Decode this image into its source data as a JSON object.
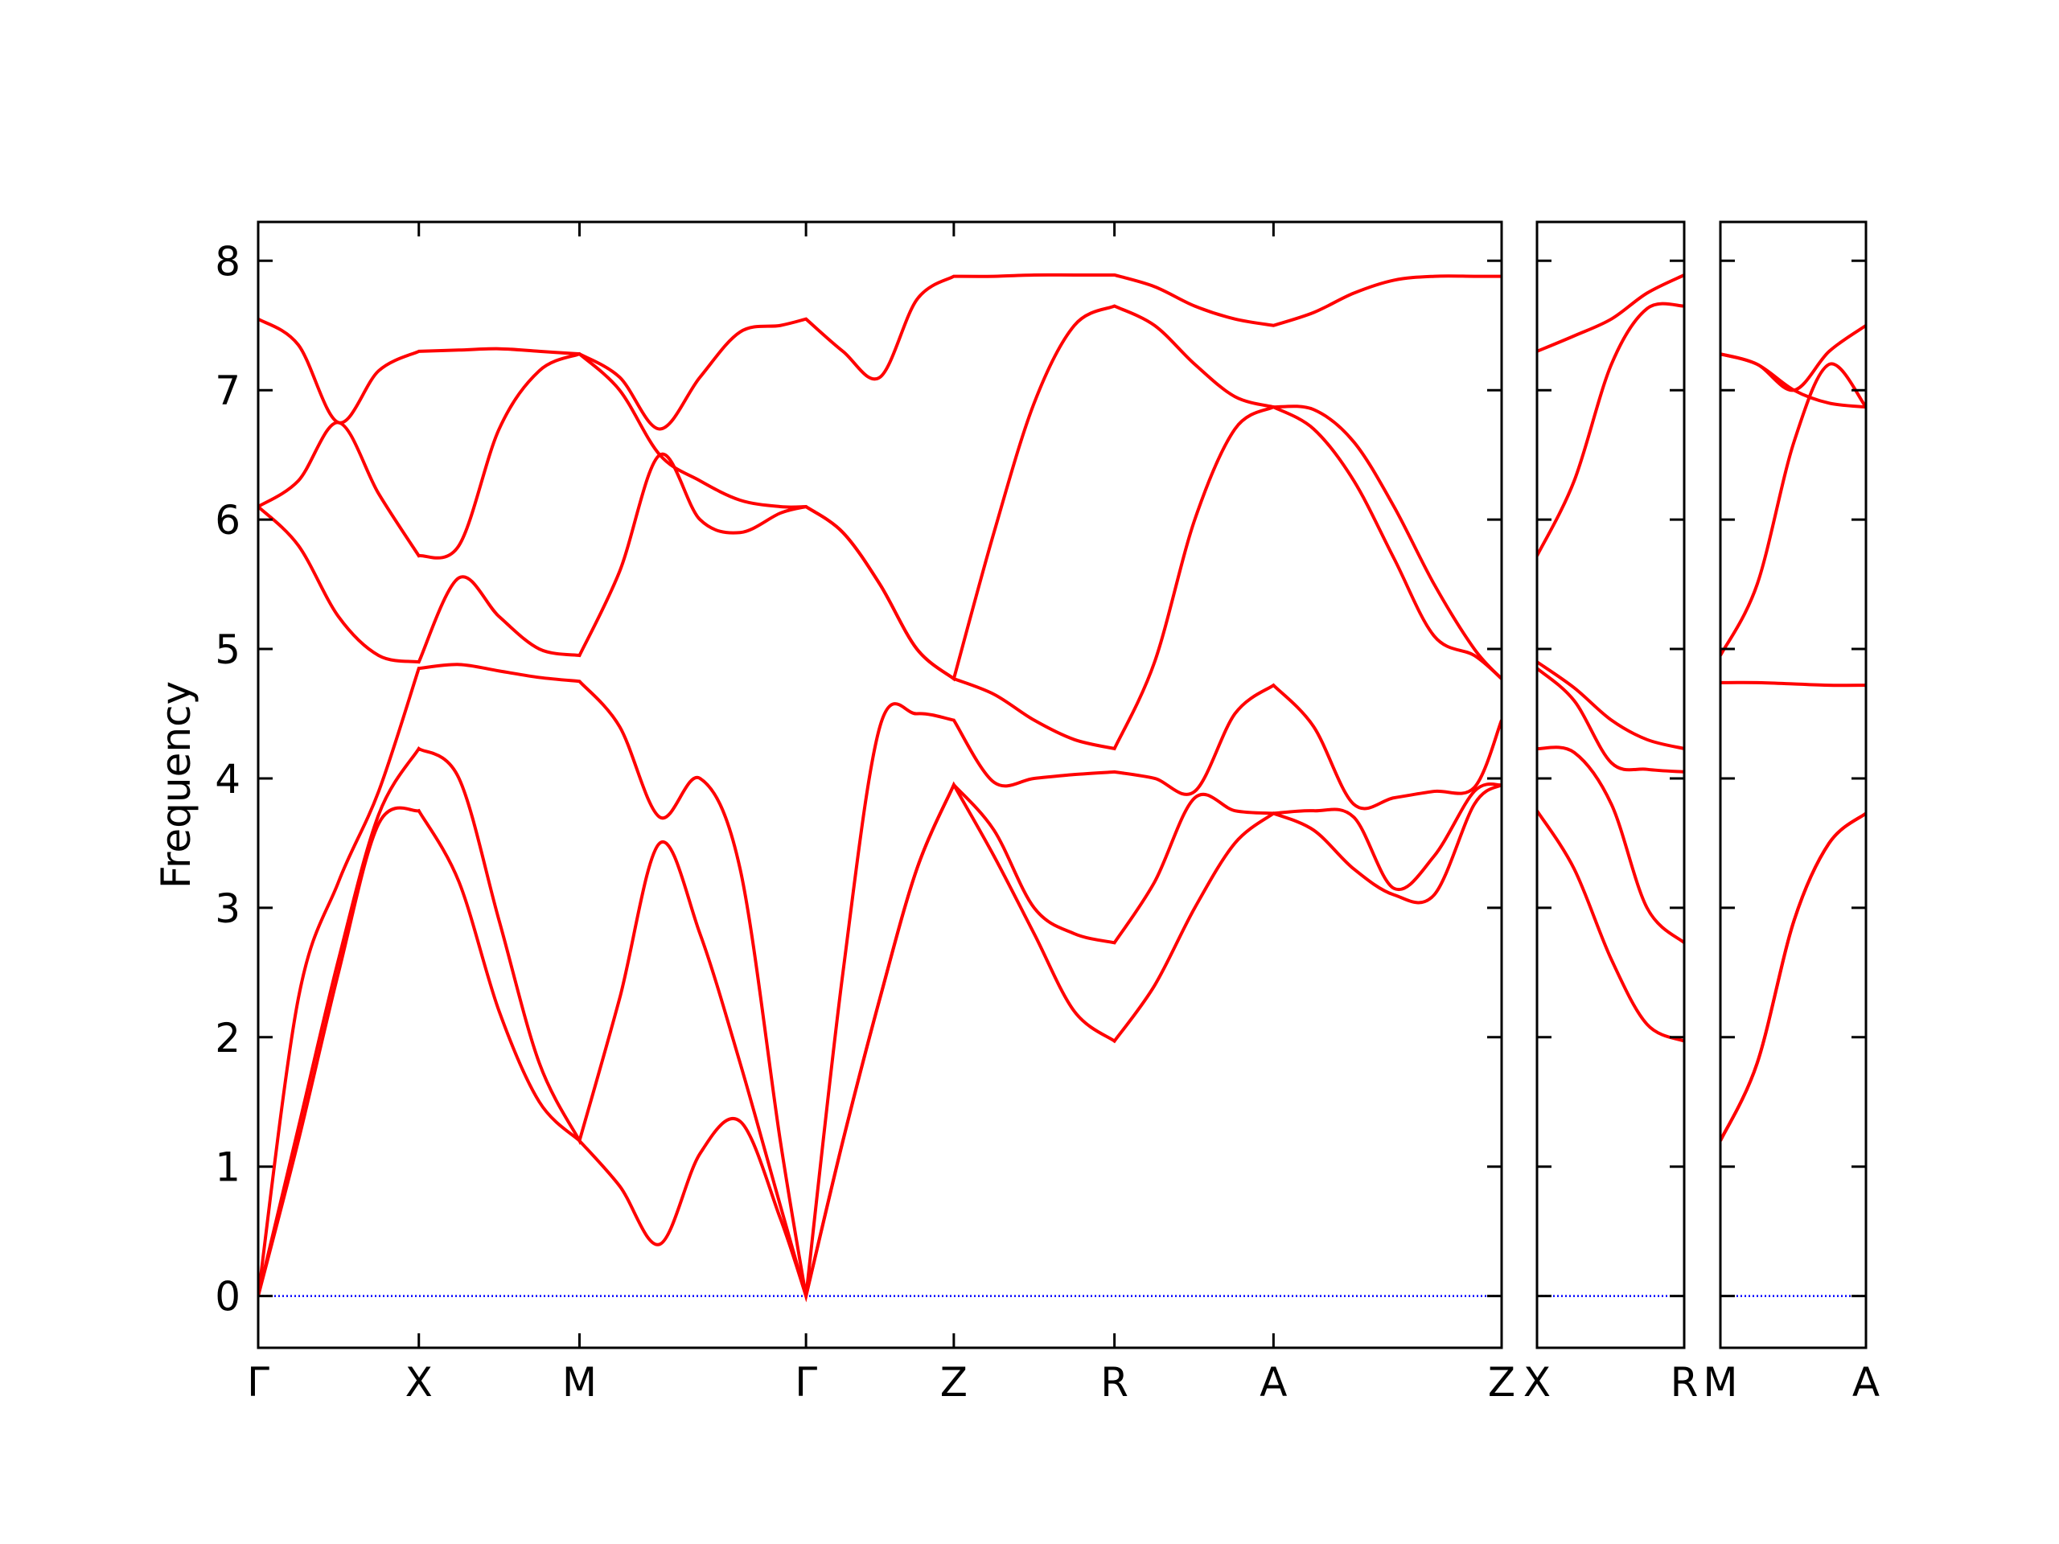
{
  "chart_data": [
    {
      "type": "line",
      "ylabel": "Frequency",
      "ylim": [
        -0.4,
        8.3
      ],
      "yticks": [
        0,
        1,
        2,
        3,
        4,
        5,
        6,
        7,
        8
      ],
      "show_ytick_labels": true,
      "xlim": [
        0,
        7.74
      ],
      "xticks": [
        {
          "value": 0,
          "label": "Γ"
        },
        {
          "value": 1,
          "label": "X"
        },
        {
          "value": 2,
          "label": "M"
        },
        {
          "value": 3.41,
          "label": "Γ"
        },
        {
          "value": 4.33,
          "label": "Z"
        },
        {
          "value": 5.33,
          "label": "R"
        },
        {
          "value": 6.32,
          "label": "A"
        },
        {
          "value": 7.74,
          "label": "Z"
        }
      ],
      "hline": 0,
      "hline_color": "#0000ff",
      "x": [
        0,
        0.25,
        0.5,
        0.75,
        1,
        1.25,
        1.5,
        1.75,
        2,
        2.25,
        2.5,
        2.75,
        3.0,
        3.25,
        3.41,
        3.64,
        3.87,
        4.1,
        4.33,
        4.58,
        4.83,
        5.08,
        5.33,
        5.58,
        5.83,
        6.08,
        6.32,
        6.57,
        6.82,
        7.07,
        7.32,
        7.57,
        7.74
      ],
      "series": [
        {
          "color": "#ff0000",
          "values": [
            0,
            1.2,
            2.5,
            3.65,
            3.75,
            3.2,
            2.2,
            1.5,
            1.2,
            0.85,
            0.4,
            1.1,
            1.35,
            0.6,
            0,
            1.2,
            2.3,
            3.3,
            3.95,
            3.4,
            2.8,
            2.2,
            1.97,
            2.4,
            3.0,
            3.5,
            3.73,
            3.6,
            3.3,
            3.1,
            3.1,
            3.8,
            3.95
          ]
        },
        {
          "color": "#ff0000",
          "values": [
            0,
            1.3,
            2.6,
            3.72,
            4.23,
            4.0,
            2.9,
            1.8,
            1.2,
            2.3,
            3.5,
            2.8,
            1.8,
            0.7,
            0,
            1.2,
            2.3,
            3.3,
            3.95,
            3.6,
            3.0,
            2.8,
            2.73,
            3.2,
            3.85,
            3.75,
            3.73,
            3.75,
            3.7,
            3.15,
            3.4,
            3.9,
            3.95
          ]
        },
        {
          "color": "#ff0000",
          "values": [
            0,
            2.3,
            3.2,
            3.9,
            4.85,
            4.88,
            4.83,
            4.78,
            4.75,
            4.4,
            3.7,
            4.0,
            3.3,
            1.2,
            0,
            2.5,
            4.4,
            4.5,
            4.45,
            3.97,
            4.0,
            4.03,
            4.05,
            4.0,
            3.9,
            4.5,
            4.72,
            4.4,
            3.8,
            3.85,
            3.9,
            3.93,
            4.45
          ]
        },
        {
          "color": "#ff0000",
          "values": [
            6.1,
            5.8,
            5.25,
            4.95,
            4.9,
            5.55,
            5.25,
            5.0,
            4.95,
            5.6,
            6.5,
            6.0,
            5.9,
            6.05,
            6.1,
            5.9,
            5.5,
            5.0,
            4.77,
            4.65,
            4.45,
            4.3,
            4.23,
            4.9,
            6.0,
            6.7,
            6.87,
            6.7,
            6.3,
            5.7,
            5.1,
            4.95,
            4.77
          ]
        },
        {
          "color": "#ff0000",
          "values": [
            6.1,
            6.3,
            6.75,
            6.2,
            5.72,
            5.8,
            6.7,
            7.15,
            7.28,
            7.0,
            6.5,
            6.3,
            6.15,
            6.1,
            6.1,
            5.9,
            5.5,
            5.0,
            4.77,
            5.9,
            6.9,
            7.5,
            7.65,
            7.5,
            7.2,
            6.95,
            6.87,
            6.85,
            6.6,
            6.1,
            5.5,
            5.0,
            4.77
          ]
        },
        {
          "color": "#ff0000",
          "values": [
            7.55,
            7.35,
            6.75,
            7.15,
            7.3,
            7.31,
            7.32,
            7.3,
            7.28,
            7.1,
            6.7,
            7.1,
            7.45,
            7.5,
            7.55,
            7.3,
            7.1,
            7.7,
            7.88,
            7.88,
            7.89,
            7.89,
            7.89,
            7.8,
            7.65,
            7.55,
            7.5,
            7.6,
            7.75,
            7.85,
            7.88,
            7.88,
            7.88
          ]
        }
      ]
    },
    {
      "type": "line",
      "ylim": [
        -0.4,
        8.3
      ],
      "yticks": [
        0,
        1,
        2,
        3,
        4,
        5,
        6,
        7,
        8
      ],
      "show_ytick_labels": false,
      "xlim": [
        0,
        0.91
      ],
      "xticks": [
        {
          "value": 0,
          "label": "X"
        },
        {
          "value": 0.91,
          "label": "R"
        }
      ],
      "hline": 0,
      "hline_color": "#0000ff",
      "x": [
        0,
        0.23,
        0.46,
        0.68,
        0.91
      ],
      "series": [
        {
          "color": "#ff0000",
          "values": [
            3.75,
            3.3,
            2.6,
            2.1,
            1.97
          ]
        },
        {
          "color": "#ff0000",
          "values": [
            4.23,
            4.2,
            3.8,
            3.0,
            2.73
          ]
        },
        {
          "color": "#ff0000",
          "values": [
            4.85,
            4.6,
            4.12,
            4.07,
            4.05
          ]
        },
        {
          "color": "#ff0000",
          "values": [
            4.9,
            4.7,
            4.45,
            4.3,
            4.23
          ]
        },
        {
          "color": "#ff0000",
          "values": [
            5.72,
            6.3,
            7.2,
            7.63,
            7.65
          ]
        },
        {
          "color": "#ff0000",
          "values": [
            7.3,
            7.42,
            7.55,
            7.75,
            7.89
          ]
        }
      ]
    },
    {
      "type": "line",
      "ylim": [
        -0.4,
        8.3
      ],
      "yticks": [
        0,
        1,
        2,
        3,
        4,
        5,
        6,
        7,
        8
      ],
      "show_ytick_labels": false,
      "xlim": [
        0,
        0.91
      ],
      "xticks": [
        {
          "value": 0,
          "label": "M"
        },
        {
          "value": 0.91,
          "label": "A"
        }
      ],
      "hline": 0,
      "hline_color": "#0000ff",
      "x": [
        0,
        0.23,
        0.46,
        0.68,
        0.91
      ],
      "series": [
        {
          "color": "#ff0000",
          "values": [
            1.2,
            1.8,
            2.9,
            3.5,
            3.73
          ]
        },
        {
          "color": "#ff0000",
          "values": [
            1.2,
            1.8,
            2.9,
            3.5,
            3.73
          ]
        },
        {
          "color": "#ff0000",
          "values": [
            4.74,
            4.74,
            4.73,
            4.72,
            4.72
          ]
        },
        {
          "color": "#ff0000",
          "values": [
            4.95,
            5.5,
            6.6,
            7.2,
            6.87
          ]
        },
        {
          "color": "#ff0000",
          "values": [
            7.28,
            7.2,
            7.0,
            7.3,
            7.5
          ]
        },
        {
          "color": "#ff0000",
          "values": [
            7.28,
            7.2,
            7.0,
            6.9,
            6.87
          ]
        }
      ]
    }
  ]
}
